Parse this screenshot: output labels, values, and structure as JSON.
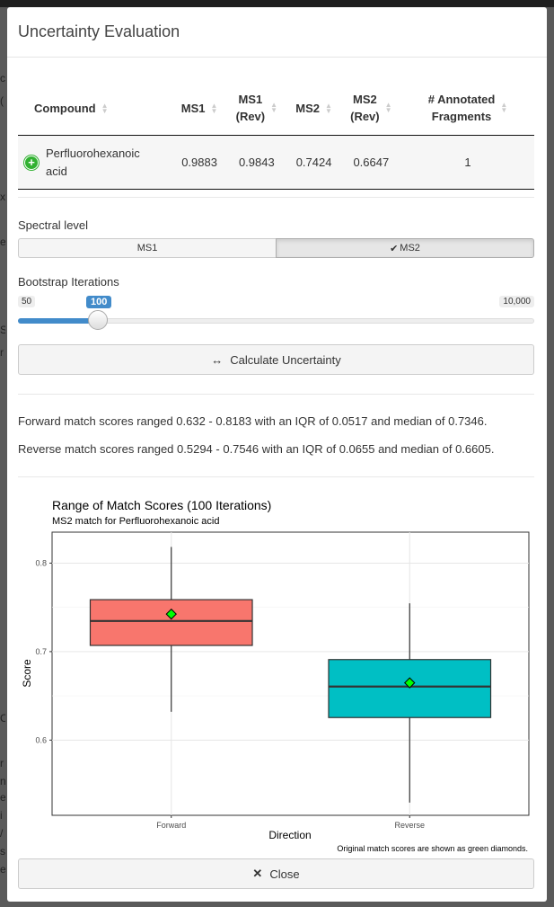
{
  "modal": {
    "title": "Uncertainty Evaluation"
  },
  "table": {
    "headers": {
      "compound": "Compound",
      "ms1": "MS1",
      "ms1_rev_a": "MS1",
      "ms1_rev_b": "(Rev)",
      "ms2": "MS2",
      "ms2_rev_a": "MS2",
      "ms2_rev_b": "(Rev)",
      "frag_a": "# Annotated",
      "frag_b": "Fragments"
    },
    "row": {
      "compound_a": "Perfluorohexanoic",
      "compound_b": "acid",
      "ms1": "0.9883",
      "ms1_rev": "0.9843",
      "ms2": "0.7424",
      "ms2_rev": "0.6647",
      "fragments": "1"
    }
  },
  "spectral": {
    "label": "Spectral level",
    "options": [
      "MS1",
      "MS2"
    ],
    "selected": "MS2",
    "check": "✔"
  },
  "bootstrap": {
    "label": "Bootstrap Iterations",
    "min": "50",
    "max": "10,000",
    "value": "100",
    "value_fraction": 0.005
  },
  "calculate": {
    "icon": "↔",
    "label": "Calculate Uncertainty"
  },
  "results": {
    "forward": "Forward match scores ranged 0.632 - 0.8183 with an IQR of 0.0517 and median of 0.7346.",
    "reverse": "Reverse match scores ranged 0.5294 - 0.7546 with an IQR of 0.0655 and median of 0.6605."
  },
  "chart_data": {
    "type": "boxplot",
    "title": "Range of Match Scores (100 Iterations)",
    "subtitle": "MS2 match for Perfluorohexanoic acid",
    "xlabel": "Direction",
    "ylabel": "Score",
    "caption": "Original match scores are shown as green diamonds.",
    "ylim": [
      0.515,
      0.835
    ],
    "yticks": [
      0.6,
      0.7,
      0.8
    ],
    "ytick_labels": [
      "0.6",
      "0.7",
      "0.8"
    ],
    "categories": [
      "Forward",
      "Reverse"
    ],
    "boxes": [
      {
        "name": "Forward",
        "min": 0.632,
        "q1": 0.707,
        "median": 0.7346,
        "q3": 0.7587,
        "max": 0.8183,
        "original": 0.7424,
        "fill": "#F8766D"
      },
      {
        "name": "Reverse",
        "min": 0.5294,
        "q1": 0.6255,
        "median": 0.6605,
        "q3": 0.691,
        "max": 0.7546,
        "original": 0.6647,
        "fill": "#00BFC4"
      }
    ],
    "marker_color": "#00FF00"
  },
  "close": {
    "icon": "✕",
    "label": "Close"
  },
  "background": {
    "letters": [
      "c",
      "(",
      "x",
      "e",
      "S",
      "r",
      "C",
      "r",
      "n",
      "e",
      "i",
      "/",
      "s",
      "e"
    ]
  }
}
